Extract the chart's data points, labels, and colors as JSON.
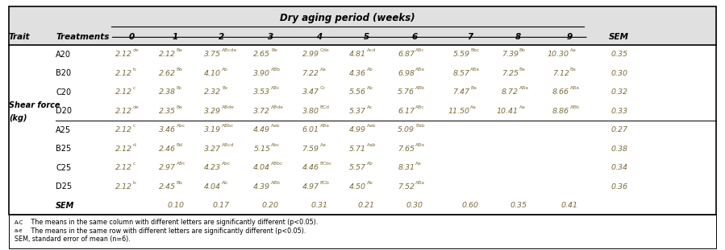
{
  "title": "Dry aging period (weeks)",
  "col_header_trait": "Trait",
  "col_header_treatments": "Treatments",
  "col_header_sem": "SEM",
  "weeks": [
    "0",
    "1",
    "2",
    "3",
    "4",
    "5",
    "6",
    "7",
    "8",
    "9"
  ],
  "trait_label_line1": "Shear force",
  "trait_label_line2": "(kg)",
  "rows": [
    {
      "treatment": "A20",
      "values": [
        [
          "2.12",
          "de"
        ],
        [
          "2.12",
          "Be"
        ],
        [
          "3.75",
          "ABcde"
        ],
        [
          "2.65",
          "Be"
        ],
        [
          "2.99",
          "Cde"
        ],
        [
          "4.81",
          "Acd"
        ],
        [
          "6.87",
          "ABc"
        ],
        [
          "5.59",
          "Bbc"
        ],
        [
          "7.39",
          "Bb"
        ],
        [
          "10.30",
          "Aa"
        ]
      ],
      "sem": "0.35",
      "group": 0
    },
    {
      "treatment": "B20",
      "values": [
        [
          "2.12",
          "b"
        ],
        [
          "2.62",
          "Bb"
        ],
        [
          "4.10",
          "Ab"
        ],
        [
          "3.90",
          "ABb"
        ],
        [
          "7.22",
          "Aa"
        ],
        [
          "4.36",
          "Ab"
        ],
        [
          "6.98",
          "ABa"
        ],
        [
          "8.57",
          "ABa"
        ],
        [
          "7.25",
          "Ba"
        ],
        [
          "7.12",
          "Ba"
        ]
      ],
      "sem": "0.30",
      "group": 0
    },
    {
      "treatment": "C20",
      "values": [
        [
          "2.12",
          "c"
        ],
        [
          "2.38",
          "Bc"
        ],
        [
          "2.32",
          "Bc"
        ],
        [
          "3.53",
          "ABc"
        ],
        [
          "3.47",
          "Cc"
        ],
        [
          "5.56",
          "Ab"
        ],
        [
          "5.76",
          "ABb"
        ],
        [
          "7.47",
          "Ba"
        ],
        [
          "8.72",
          "ABa"
        ],
        [
          "8.66",
          "ABa"
        ]
      ],
      "sem": "0.32",
      "group": 0
    },
    {
      "treatment": "D20",
      "values": [
        [
          "2.12",
          "de"
        ],
        [
          "2.35",
          "Be"
        ],
        [
          "3.29",
          "ABde"
        ],
        [
          "3.72",
          "ABde"
        ],
        [
          "3.80",
          "BCd"
        ],
        [
          "5.37",
          "Ac"
        ],
        [
          "6.17",
          "ABc"
        ],
        [
          "11.50",
          "Aa"
        ],
        [
          "10.41",
          "Aa"
        ],
        [
          "8.86",
          "ABb"
        ]
      ],
      "sem": "0.33",
      "group": 0
    },
    {
      "treatment": "A25",
      "values": [
        [
          "2.12",
          "c"
        ],
        [
          "3.46",
          "Abc"
        ],
        [
          "3.19",
          "ABbc"
        ],
        [
          "4.49",
          "Aab"
        ],
        [
          "6.01",
          "ABa"
        ],
        [
          "4.99",
          "Aab"
        ],
        [
          "5.09",
          "Bab"
        ],
        [
          "",
          ""
        ],
        [
          "",
          ""
        ],
        [
          "",
          ""
        ]
      ],
      "sem": "0.27",
      "group": 1
    },
    {
      "treatment": "B25",
      "values": [
        [
          "2.12",
          "d"
        ],
        [
          "2.46",
          "Bd"
        ],
        [
          "3.27",
          "ABcd"
        ],
        [
          "5.15",
          "Abc"
        ],
        [
          "7.59",
          "Aa"
        ],
        [
          "5.71",
          "Aab"
        ],
        [
          "7.65",
          "ABa"
        ],
        [
          "",
          ""
        ],
        [
          "",
          ""
        ],
        [
          "",
          ""
        ]
      ],
      "sem": "0.38",
      "group": 1
    },
    {
      "treatment": "C25",
      "values": [
        [
          "2.12",
          "c"
        ],
        [
          "2.97",
          "ABc"
        ],
        [
          "4.23",
          "Abc"
        ],
        [
          "4.04",
          "ABbc"
        ],
        [
          "4.46",
          "BCbc"
        ],
        [
          "5.57",
          "Ab"
        ],
        [
          "8.31",
          "Aa"
        ],
        [
          "",
          ""
        ],
        [
          "",
          ""
        ],
        [
          "",
          ""
        ]
      ],
      "sem": "0.34",
      "group": 1
    },
    {
      "treatment": "D25",
      "values": [
        [
          "2.12",
          "b"
        ],
        [
          "2.45",
          "Bb"
        ],
        [
          "4.04",
          "Ab"
        ],
        [
          "4.39",
          "ABb"
        ],
        [
          "4.97",
          "BCb"
        ],
        [
          "4.50",
          "Ab"
        ],
        [
          "7.52",
          "ABa"
        ],
        [
          "",
          ""
        ],
        [
          "",
          ""
        ],
        [
          "",
          ""
        ]
      ],
      "sem": "0.36",
      "group": 1
    },
    {
      "treatment": "SEM",
      "values": [
        [
          "",
          ""
        ],
        [
          "0.10",
          ""
        ],
        [
          "0.17",
          ""
        ],
        [
          "0.20",
          ""
        ],
        [
          "0.31",
          ""
        ],
        [
          "0.21",
          ""
        ],
        [
          "0.30",
          ""
        ],
        [
          "0.60",
          ""
        ],
        [
          "0.35",
          ""
        ],
        [
          "0.41",
          ""
        ]
      ],
      "sem": "",
      "group": 1
    }
  ],
  "footnote1_super": "A-C",
  "footnote1_text": " The means in the same column with different letters are significantly different (p<0.05).",
  "footnote2_super": "a-e",
  "footnote2_text": " The means in the same row with different letters are significantly different (p<0.05).",
  "footnote3": "SEM, standard error of mean (n=6).",
  "bg_color_header": "#e0e0e0",
  "bg_color_white": "#ffffff",
  "text_color_data": "#7B6B3A",
  "text_color_header": "#000000"
}
